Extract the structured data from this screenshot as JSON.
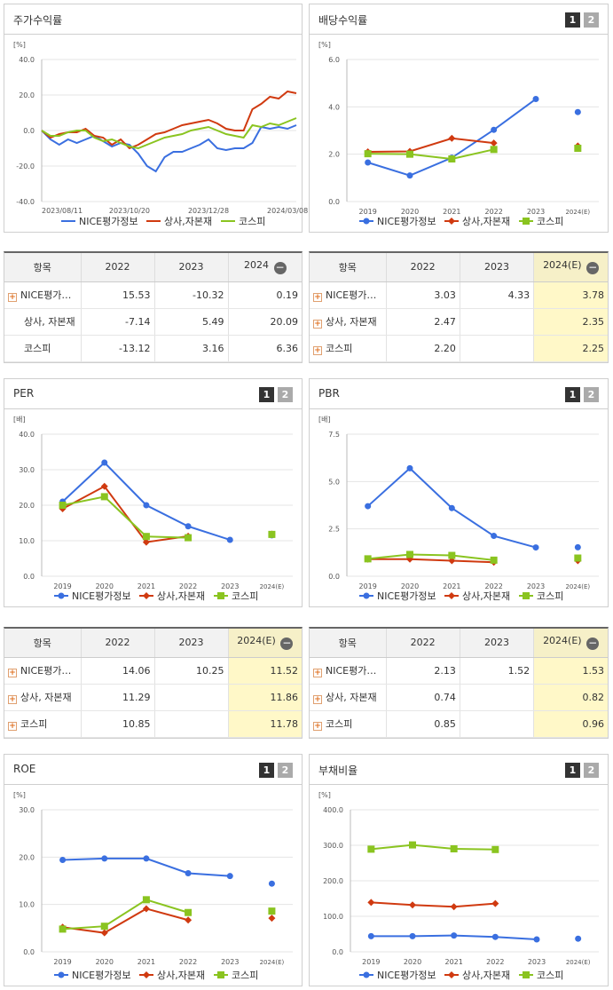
{
  "panels": [
    {
      "title": "주가수익률",
      "tab1": "",
      "tab2": ""
    },
    {
      "title": "배당수익률",
      "tab1": "1",
      "tab2": "2"
    },
    {
      "title": "PER",
      "tab1": "1",
      "tab2": "2"
    },
    {
      "title": "PBR",
      "tab1": "1",
      "tab2": "2"
    },
    {
      "title": "ROE",
      "tab1": "1",
      "tab2": "2"
    },
    {
      "title": "부채비율",
      "tab1": "1",
      "tab2": "2"
    }
  ],
  "legend": {
    "series": [
      "NICE평가정보",
      "상사,자본재",
      "코스피"
    ]
  },
  "colors": {
    "blue": "#3a6fe0",
    "red": "#d03a10",
    "green": "#8ac420"
  },
  "tables": [
    {
      "headers": [
        "항목",
        "2022",
        "2023",
        "2024"
      ],
      "estimate": false,
      "rows": [
        {
          "name": "NICE평가…",
          "plus": true,
          "v": [
            "15.53",
            "-10.32",
            "0.19"
          ]
        },
        {
          "name": "상사, 자본재",
          "plus": false,
          "v": [
            "-7.14",
            "5.49",
            "20.09"
          ]
        },
        {
          "name": "코스피",
          "plus": false,
          "v": [
            "-13.12",
            "3.16",
            "6.36"
          ]
        }
      ]
    },
    {
      "headers": [
        "항목",
        "2022",
        "2023",
        "2024(E)"
      ],
      "estimate": true,
      "rows": [
        {
          "name": "NICE평가…",
          "plus": true,
          "v": [
            "3.03",
            "4.33",
            "3.78"
          ]
        },
        {
          "name": "상사, 자본재",
          "plus": true,
          "v": [
            "2.47",
            "",
            "2.35"
          ]
        },
        {
          "name": "코스피",
          "plus": true,
          "v": [
            "2.20",
            "",
            "2.25"
          ]
        }
      ]
    },
    {
      "headers": [
        "항목",
        "2022",
        "2023",
        "2024(E)"
      ],
      "estimate": true,
      "rows": [
        {
          "name": "NICE평가…",
          "plus": true,
          "v": [
            "14.06",
            "10.25",
            "11.52"
          ]
        },
        {
          "name": "상사, 자본재",
          "plus": true,
          "v": [
            "11.29",
            "",
            "11.86"
          ]
        },
        {
          "name": "코스피",
          "plus": true,
          "v": [
            "10.85",
            "",
            "11.78"
          ]
        }
      ]
    },
    {
      "headers": [
        "항목",
        "2022",
        "2023",
        "2024(E)"
      ],
      "estimate": true,
      "rows": [
        {
          "name": "NICE평가…",
          "plus": true,
          "v": [
            "2.13",
            "1.52",
            "1.53"
          ]
        },
        {
          "name": "상사, 자본재",
          "plus": true,
          "v": [
            "0.74",
            "",
            "0.82"
          ]
        },
        {
          "name": "코스피",
          "plus": true,
          "v": [
            "0.85",
            "",
            "0.96"
          ]
        }
      ]
    }
  ],
  "chart_data": [
    {
      "type": "line",
      "title": "주가수익률",
      "ylabel": "[%]",
      "ylim": [
        -40,
        40
      ],
      "yticks": [
        "-40.0",
        "-20.0",
        "0.0",
        "20.0",
        "40.0"
      ],
      "xticks": [
        "2023/08/11",
        "2023/10/20",
        "2023/12/28",
        "2024/03/08"
      ],
      "series": [
        {
          "name": "NICE평가정보",
          "values": [
            0,
            -5,
            -8,
            -5,
            -7,
            -5,
            -3,
            -6,
            -9,
            -7,
            -8,
            -13,
            -20,
            -23,
            -15,
            -12,
            -12,
            -10,
            -8,
            -5,
            -10,
            -11,
            -10,
            -10,
            -7,
            2,
            1,
            2,
            1,
            3
          ]
        },
        {
          "name": "상사,자본재",
          "values": [
            0,
            -4,
            -2,
            -1,
            -1,
            1,
            -3,
            -4,
            -8,
            -5,
            -10,
            -8,
            -5,
            -2,
            -1,
            1,
            3,
            4,
            5,
            6,
            4,
            1,
            0,
            0,
            12,
            15,
            19,
            18,
            22,
            21
          ]
        },
        {
          "name": "코스피",
          "values": [
            0,
            -3,
            -3,
            -1,
            0,
            0,
            -4,
            -6,
            -5,
            -7,
            -9,
            -10,
            -8,
            -6,
            -4,
            -3,
            -2,
            0,
            1,
            2,
            0,
            -2,
            -3,
            -4,
            3,
            2,
            4,
            3,
            5,
            7
          ]
        }
      ]
    },
    {
      "type": "line",
      "title": "배당수익률",
      "ylabel": "[%]",
      "ylim": [
        0,
        6
      ],
      "yticks": [
        "0.0",
        "2.0",
        "4.0",
        "6.0"
      ],
      "categories": [
        "2019",
        "2020",
        "2021",
        "2022",
        "2023",
        "2024(E)"
      ],
      "series": [
        {
          "name": "NICE평가정보",
          "values": [
            1.65,
            1.1,
            1.85,
            3.03,
            4.33,
            3.78
          ]
        },
        {
          "name": "상사,자본재",
          "values": [
            2.1,
            2.12,
            2.67,
            2.47,
            null,
            2.35
          ]
        },
        {
          "name": "코스피",
          "values": [
            2.02,
            2.0,
            1.8,
            2.2,
            null,
            2.25
          ]
        }
      ]
    },
    {
      "type": "line",
      "title": "PER",
      "ylabel": "[배]",
      "ylim": [
        0,
        40
      ],
      "yticks": [
        "0.0",
        "10.0",
        "20.0",
        "30.0",
        "40.0"
      ],
      "categories": [
        "2019",
        "2020",
        "2021",
        "2022",
        "2023",
        "2024(E)"
      ],
      "series": [
        {
          "name": "NICE평가정보",
          "values": [
            21.0,
            32.0,
            20.0,
            14.06,
            10.25,
            11.52
          ]
        },
        {
          "name": "상사,자본재",
          "values": [
            19.0,
            25.3,
            9.6,
            11.29,
            null,
            11.86
          ]
        },
        {
          "name": "코스피",
          "values": [
            20.0,
            22.4,
            11.2,
            10.85,
            null,
            11.78
          ]
        }
      ]
    },
    {
      "type": "line",
      "title": "PBR",
      "ylabel": "[배]",
      "ylim": [
        0,
        7.5
      ],
      "yticks": [
        "0.0",
        "2.5",
        "5.0",
        "7.5"
      ],
      "categories": [
        "2019",
        "2020",
        "2021",
        "2022",
        "2023",
        "2024(E)"
      ],
      "series": [
        {
          "name": "NICE평가정보",
          "values": [
            3.7,
            5.7,
            3.6,
            2.13,
            1.52,
            1.53
          ]
        },
        {
          "name": "상사,자본재",
          "values": [
            0.9,
            0.9,
            0.82,
            0.74,
            null,
            0.82
          ]
        },
        {
          "name": "코스피",
          "values": [
            0.92,
            1.15,
            1.1,
            0.85,
            null,
            0.96
          ]
        }
      ]
    },
    {
      "type": "line",
      "title": "ROE",
      "ylabel": "[%]",
      "ylim": [
        0,
        30
      ],
      "yticks": [
        "0.0",
        "10.0",
        "20.0",
        "30.0"
      ],
      "categories": [
        "2019",
        "2020",
        "2021",
        "2022",
        "2023",
        "2024(E)"
      ],
      "series": [
        {
          "name": "NICE평가정보",
          "values": [
            19.4,
            19.7,
            19.7,
            16.6,
            16.0,
            14.4
          ]
        },
        {
          "name": "상사,자본재",
          "values": [
            5.2,
            4.0,
            9.1,
            6.7,
            null,
            7.1
          ]
        },
        {
          "name": "코스피",
          "values": [
            4.8,
            5.4,
            11.0,
            8.3,
            null,
            8.6
          ]
        }
      ]
    },
    {
      "type": "line",
      "title": "부채비율",
      "ylabel": "[%]",
      "ylim": [
        0,
        400
      ],
      "yticks": [
        "0.0",
        "100.0",
        "200.0",
        "300.0",
        "400.0"
      ],
      "categories": [
        "2019",
        "2020",
        "2021",
        "2022",
        "2023",
        "2024(E)"
      ],
      "series": [
        {
          "name": "NICE평가정보",
          "values": [
            44,
            44,
            46,
            42,
            35,
            37
          ]
        },
        {
          "name": "상사,자본재",
          "values": [
            139,
            132,
            127,
            136,
            null,
            null
          ]
        },
        {
          "name": "코스피",
          "values": [
            289,
            301,
            290,
            288,
            null,
            null
          ]
        }
      ]
    }
  ]
}
